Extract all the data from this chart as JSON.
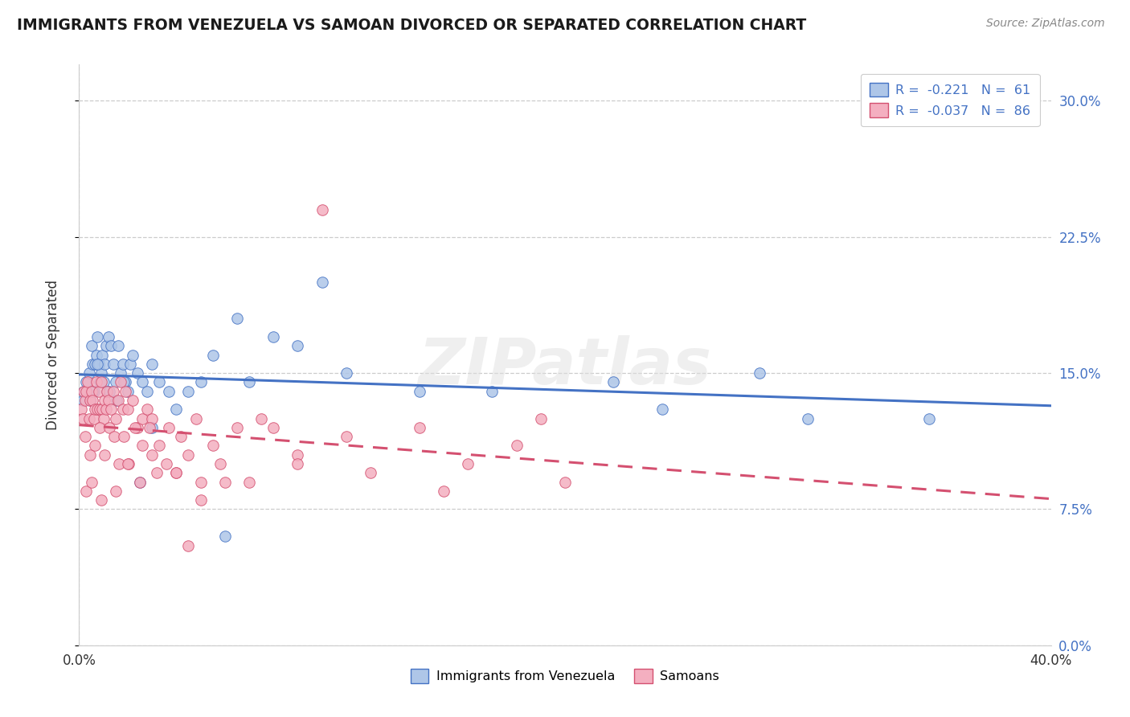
{
  "title": "IMMIGRANTS FROM VENEZUELA VS SAMOAN DIVORCED OR SEPARATED CORRELATION CHART",
  "source_text": "Source: ZipAtlas.com",
  "ylabel": "Divorced or Separated",
  "legend_entry1": "Immigrants from Venezuela",
  "legend_entry2": "Samoans",
  "R1": -0.221,
  "N1": 61,
  "R2": -0.037,
  "N2": 86,
  "color_blue": "#aec6e8",
  "color_pink": "#f4afc0",
  "line_blue": "#4472c4",
  "line_pink": "#d45070",
  "watermark": "ZIPatlas",
  "xlim": [
    0.0,
    40.0
  ],
  "ylim": [
    0.0,
    32.0
  ],
  "yticks": [
    0.0,
    7.5,
    15.0,
    22.5,
    30.0
  ],
  "blue_x": [
    0.15,
    0.2,
    0.3,
    0.4,
    0.5,
    0.55,
    0.6,
    0.65,
    0.7,
    0.75,
    0.8,
    0.85,
    0.9,
    0.95,
    1.0,
    1.05,
    1.1,
    1.15,
    1.2,
    1.3,
    1.4,
    1.5,
    1.6,
    1.7,
    1.8,
    1.9,
    2.0,
    2.1,
    2.2,
    2.4,
    2.6,
    2.8,
    3.0,
    3.3,
    3.7,
    4.5,
    5.0,
    5.5,
    6.5,
    8.0,
    9.0,
    11.0,
    14.0,
    22.0,
    28.0,
    35.0,
    0.45,
    0.55,
    0.75,
    1.25,
    1.55,
    1.85,
    2.5,
    3.0,
    4.0,
    6.0,
    7.0,
    10.0,
    17.0,
    24.0,
    30.0
  ],
  "blue_y": [
    13.5,
    14.0,
    14.5,
    15.0,
    16.5,
    15.5,
    14.0,
    15.5,
    16.0,
    17.0,
    15.5,
    14.5,
    15.0,
    16.0,
    14.5,
    15.5,
    16.5,
    14.0,
    17.0,
    16.5,
    15.5,
    14.5,
    16.5,
    15.0,
    15.5,
    14.5,
    14.0,
    15.5,
    16.0,
    15.0,
    14.5,
    14.0,
    15.5,
    14.5,
    14.0,
    14.0,
    14.5,
    16.0,
    18.0,
    17.0,
    16.5,
    15.0,
    14.0,
    14.5,
    15.0,
    12.5,
    13.5,
    14.0,
    15.5,
    14.0,
    13.5,
    14.5,
    9.0,
    12.0,
    13.0,
    6.0,
    14.5,
    20.0,
    14.0,
    13.0,
    12.5
  ],
  "pink_x": [
    0.1,
    0.15,
    0.2,
    0.25,
    0.3,
    0.35,
    0.4,
    0.45,
    0.5,
    0.55,
    0.6,
    0.65,
    0.7,
    0.75,
    0.8,
    0.85,
    0.9,
    0.95,
    1.0,
    1.05,
    1.1,
    1.15,
    1.2,
    1.3,
    1.4,
    1.5,
    1.6,
    1.7,
    1.8,
    1.9,
    2.0,
    2.2,
    2.4,
    2.6,
    2.8,
    3.0,
    3.3,
    3.7,
    4.2,
    4.8,
    5.5,
    6.5,
    7.5,
    9.0,
    11.0,
    14.0,
    18.0,
    0.25,
    0.45,
    0.65,
    0.85,
    1.05,
    1.25,
    1.45,
    1.65,
    1.85,
    2.05,
    2.3,
    2.6,
    2.9,
    3.2,
    3.6,
    4.0,
    4.5,
    5.0,
    5.8,
    7.0,
    9.0,
    12.0,
    16.0,
    20.0,
    0.3,
    0.5,
    0.9,
    1.5,
    2.0,
    2.5,
    3.0,
    4.0,
    5.0,
    6.0,
    8.0,
    10.0,
    15.0,
    4.5,
    19.0
  ],
  "pink_y": [
    13.0,
    12.5,
    14.0,
    13.5,
    14.0,
    14.5,
    12.5,
    13.5,
    14.0,
    13.5,
    12.5,
    13.0,
    14.5,
    13.0,
    14.0,
    13.0,
    14.5,
    13.0,
    12.5,
    13.5,
    13.0,
    14.0,
    13.5,
    13.0,
    14.0,
    12.5,
    13.5,
    14.5,
    13.0,
    14.0,
    13.0,
    13.5,
    12.0,
    12.5,
    13.0,
    12.5,
    11.0,
    12.0,
    11.5,
    12.5,
    11.0,
    12.0,
    12.5,
    10.5,
    11.5,
    12.0,
    11.0,
    11.5,
    10.5,
    11.0,
    12.0,
    10.5,
    12.0,
    11.5,
    10.0,
    11.5,
    10.0,
    12.0,
    11.0,
    12.0,
    9.5,
    10.0,
    9.5,
    10.5,
    9.0,
    10.0,
    9.0,
    10.0,
    9.5,
    10.0,
    9.0,
    8.5,
    9.0,
    8.0,
    8.5,
    10.0,
    9.0,
    10.5,
    9.5,
    8.0,
    9.0,
    12.0,
    24.0,
    8.5,
    5.5,
    12.5
  ]
}
